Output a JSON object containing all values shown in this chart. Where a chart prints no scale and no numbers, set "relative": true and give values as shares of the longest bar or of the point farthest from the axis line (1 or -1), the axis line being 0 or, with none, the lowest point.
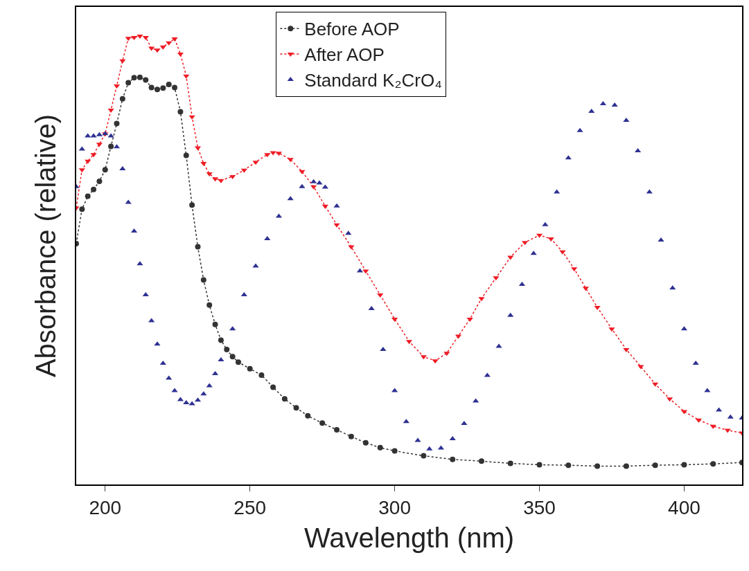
{
  "chart_data": {
    "type": "line",
    "relative": true,
    "xlabel": "Wavelength (nm)",
    "ylabel": "Absorbance (relative)",
    "xlim": [
      190,
      420
    ],
    "xticks": [
      200,
      250,
      300,
      350,
      400
    ],
    "tick_labels": "x",
    "legend": "top",
    "series": [
      {
        "name": "Before AOP",
        "color": "#333333",
        "marker": "circle",
        "line_style": "dotted",
        "x": [
          190,
          192,
          194,
          196,
          198,
          200,
          202,
          204,
          206,
          208,
          210,
          212,
          214,
          216,
          218,
          220,
          222,
          224,
          226,
          228,
          230,
          232,
          234,
          236,
          238,
          240,
          242,
          244,
          246,
          250,
          254,
          258,
          262,
          266,
          270,
          275,
          280,
          285,
          290,
          295,
          300,
          310,
          320,
          330,
          340,
          350,
          360,
          370,
          380,
          390,
          400,
          410,
          420
        ],
        "values": [
          0.537,
          0.614,
          0.643,
          0.658,
          0.676,
          0.702,
          0.754,
          0.805,
          0.86,
          0.896,
          0.907,
          0.908,
          0.902,
          0.885,
          0.881,
          0.884,
          0.892,
          0.885,
          0.831,
          0.734,
          0.623,
          0.53,
          0.456,
          0.4,
          0.357,
          0.322,
          0.301,
          0.285,
          0.273,
          0.258,
          0.244,
          0.217,
          0.191,
          0.171,
          0.153,
          0.137,
          0.122,
          0.107,
          0.093,
          0.082,
          0.075,
          0.064,
          0.056,
          0.052,
          0.047,
          0.044,
          0.043,
          0.041,
          0.041,
          0.043,
          0.044,
          0.046,
          0.049
        ]
      },
      {
        "name": "After AOP",
        "color": "#ee1c25",
        "marker": "triangle-down",
        "line_style": "dotted",
        "x": [
          190,
          192,
          194,
          196,
          198,
          200,
          202,
          204,
          206,
          208,
          210,
          212,
          214,
          216,
          218,
          220,
          222,
          224,
          226,
          228,
          230,
          232,
          234,
          236,
          238,
          240,
          244,
          248,
          252,
          256,
          258,
          260,
          264,
          268,
          272,
          276,
          280,
          285,
          290,
          295,
          300,
          305,
          310,
          314,
          318,
          322,
          326,
          330,
          335,
          340,
          345,
          350,
          354,
          358,
          362,
          366,
          370,
          375,
          380,
          385,
          390,
          395,
          400,
          405,
          410,
          415,
          420
        ],
        "values": [
          0.617,
          0.702,
          0.721,
          0.736,
          0.759,
          0.782,
          0.835,
          0.889,
          0.945,
          0.995,
          0.997,
          1.0,
          0.997,
          0.973,
          0.969,
          0.976,
          0.985,
          0.994,
          0.96,
          0.911,
          0.82,
          0.751,
          0.716,
          0.693,
          0.682,
          0.678,
          0.687,
          0.701,
          0.719,
          0.736,
          0.74,
          0.739,
          0.725,
          0.698,
          0.664,
          0.621,
          0.579,
          0.53,
          0.476,
          0.423,
          0.369,
          0.319,
          0.285,
          0.276,
          0.293,
          0.331,
          0.369,
          0.415,
          0.461,
          0.507,
          0.54,
          0.556,
          0.548,
          0.519,
          0.481,
          0.438,
          0.395,
          0.347,
          0.301,
          0.263,
          0.224,
          0.191,
          0.163,
          0.144,
          0.13,
          0.121,
          0.115
        ]
      },
      {
        "name": "Standard K₂CrO₄",
        "type": "scatter",
        "color": "#2e3192",
        "marker": "triangle-up",
        "x": [
          190,
          192,
          194,
          196,
          198,
          200,
          202,
          204,
          206,
          208,
          210,
          212,
          214,
          216,
          218,
          220,
          222,
          224,
          226,
          228,
          230,
          232,
          234,
          236,
          238,
          240,
          244,
          248,
          252,
          256,
          260,
          264,
          268,
          272,
          274,
          276,
          280,
          284,
          288,
          292,
          296,
          300,
          304,
          308,
          312,
          316,
          320,
          324,
          328,
          332,
          336,
          340,
          344,
          348,
          352,
          356,
          360,
          364,
          368,
          372,
          376,
          380,
          384,
          388,
          392,
          396,
          400,
          404,
          408,
          412,
          416,
          420
        ],
        "values": [
          0.664,
          0.748,
          0.777,
          0.777,
          0.78,
          0.782,
          0.777,
          0.753,
          0.704,
          0.629,
          0.565,
          0.492,
          0.423,
          0.365,
          0.313,
          0.27,
          0.237,
          0.209,
          0.189,
          0.182,
          0.18,
          0.188,
          0.202,
          0.22,
          0.247,
          0.278,
          0.347,
          0.423,
          0.487,
          0.548,
          0.598,
          0.637,
          0.664,
          0.675,
          0.672,
          0.663,
          0.621,
          0.56,
          0.476,
          0.392,
          0.301,
          0.209,
          0.14,
          0.098,
          0.079,
          0.081,
          0.102,
          0.136,
          0.186,
          0.243,
          0.308,
          0.377,
          0.446,
          0.515,
          0.579,
          0.652,
          0.728,
          0.789,
          0.832,
          0.849,
          0.846,
          0.812,
          0.744,
          0.652,
          0.545,
          0.438,
          0.347,
          0.27,
          0.209,
          0.166,
          0.15,
          0.148
        ]
      }
    ]
  }
}
